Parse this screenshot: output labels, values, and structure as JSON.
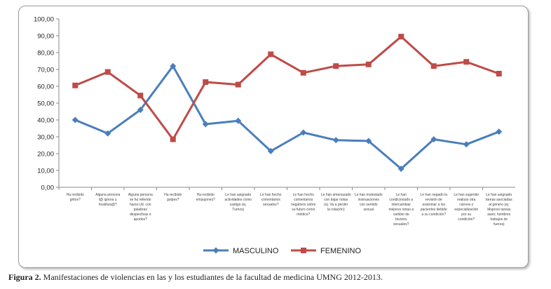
{
  "chart_data": {
    "type": "line",
    "title": "",
    "xlabel": "",
    "ylabel": "",
    "ylim": [
      0,
      100
    ],
    "yticks": [
      "0,00",
      "10,00",
      "20,00",
      "30,00",
      "40,00",
      "50,00",
      "60,00",
      "70,00",
      "80,00",
      "90,00",
      "100,00"
    ],
    "grid": false,
    "legend_placement": "bottom",
    "categories": [
      "Ha recibido gritos?",
      "Alguna persona l@ ignora u hostiliza@?",
      "Alguna persona se ha referido hacia Ud. con palabras despectivas o apodos?",
      "Ha recibido golpes?",
      "Ha recibido empujones?",
      "Le han asignado actividades como castigo (ej. Turnos)",
      "Le han hecho comentarios sexuales?",
      "Le han hecho comentarios negativos sobre su futuro como médico?",
      "Le han amenazado con bajar notas (ej. Va a perder la rotación)",
      "Le han molestado insinuaciones con sentido sexual",
      "Le han condicionado a intercambiar mejores notas a cambio de favores sexuales?",
      "Le han negado la revisión de examinar a los pacientes debido a su condición?",
      "Le han sugerido realizar otra carrera o especialización por su condición?",
      "Le han asignado tareas asociadas al género (ej. Mujeres tareas aseo; hombres trabajos de fuerza)"
    ],
    "series": [
      {
        "name": "MASCULINO",
        "color": "#4a7ebb",
        "marker": "diamond",
        "values": [
          40,
          32,
          46,
          72,
          37.5,
          39.5,
          21.5,
          32.5,
          28,
          27.5,
          11,
          28.5,
          25.5,
          33
        ]
      },
      {
        "name": "FEMENINO",
        "color": "#be4b48",
        "marker": "square",
        "values": [
          60.5,
          68.5,
          54.5,
          28.5,
          62.5,
          61,
          79,
          68,
          72,
          73,
          89.5,
          72,
          74.5,
          67.5
        ]
      }
    ]
  },
  "caption": {
    "label": "Figura 2.",
    "text": " Manifestaciones de violencias en las y los estudiantes de la facultad de medicina UMNG 2012-2013."
  }
}
